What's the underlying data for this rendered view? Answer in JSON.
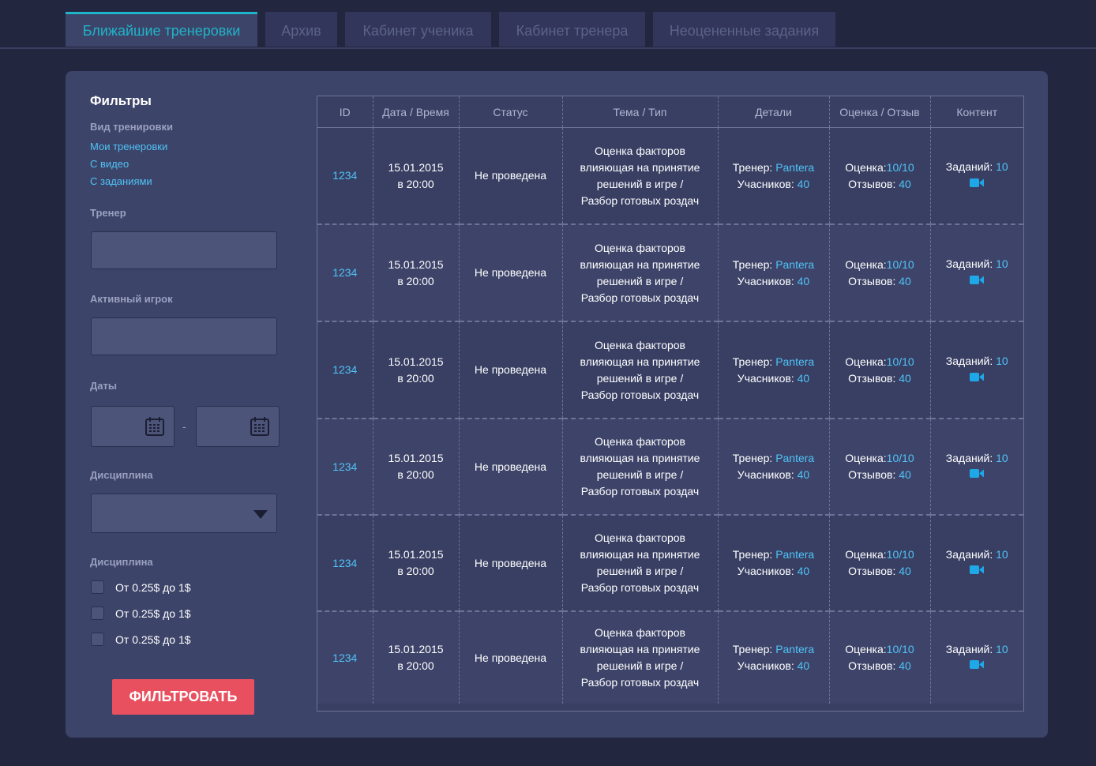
{
  "tabs": [
    {
      "label": "Ближайшие тренеровки",
      "active": true
    },
    {
      "label": "Архив",
      "active": false
    },
    {
      "label": "Кабинет ученика",
      "active": false
    },
    {
      "label": "Кабинет тренера",
      "active": false
    },
    {
      "label": "Неоцененные задания",
      "active": false
    }
  ],
  "filters": {
    "title": "Фильтры",
    "training_type_label": "Вид тренировки",
    "links": [
      "Мои тренеровки",
      "С видео",
      "С заданиями"
    ],
    "coach_label": "Тренер",
    "coach_value": "",
    "player_label": "Активный игрок",
    "player_value": "",
    "dates_label": "Даты",
    "date_from": "",
    "date_to": "",
    "date_separator": "-",
    "discipline_label": "Дисциплина",
    "discipline_selected": "",
    "discipline2_label": "Дисциплина",
    "checkboxes": [
      {
        "label": "От 0.25$ до 1$",
        "checked": false
      },
      {
        "label": "От 0.25$ до 1$",
        "checked": false
      },
      {
        "label": "От 0.25$ до 1$",
        "checked": false
      }
    ],
    "button_label": "ФИЛЬТРОВАТЬ"
  },
  "table": {
    "columns": [
      "ID",
      "Дата / Время",
      "Статус",
      "Тема / Тип",
      "Детали",
      "Оценка / Отзыв",
      "Контент"
    ],
    "rows": [
      {
        "id": "1234",
        "date": "15.01.2015",
        "time": "в 20:00",
        "status": "Не проведена",
        "topic": [
          "Оценка факторов",
          "влияющая на принятие",
          "решений в игре /",
          "Разбор готовых роздач"
        ],
        "coach_label": "Тренер:",
        "coach": "Pantera",
        "participants_label": "Учасников:",
        "participants": "40",
        "rating_label": "Оценка:",
        "rating": "10/10",
        "reviews_label": "Отзывов:",
        "reviews": "40",
        "tasks_label": "Заданий:",
        "tasks": "10",
        "icon": "video-camera-icon"
      },
      {
        "id": "1234",
        "date": "15.01.2015",
        "time": "в 20:00",
        "status": "Не проведена",
        "topic": [
          "Оценка факторов",
          "влияющая на принятие",
          "решений в игре /",
          "Разбор готовых роздач"
        ],
        "coach_label": "Тренер:",
        "coach": "Pantera",
        "participants_label": "Учасников:",
        "participants": "40",
        "rating_label": "Оценка:",
        "rating": "10/10",
        "reviews_label": "Отзывов:",
        "reviews": "40",
        "tasks_label": "Заданий:",
        "tasks": "10",
        "icon": "video-camera-icon"
      },
      {
        "id": "1234",
        "date": "15.01.2015",
        "time": "в 20:00",
        "status": "Не проведена",
        "topic": [
          "Оценка факторов",
          "влияющая на принятие",
          "решений в игре /",
          "Разбор готовых роздач"
        ],
        "coach_label": "Тренер:",
        "coach": "Pantera",
        "participants_label": "Учасников:",
        "participants": "40",
        "rating_label": "Оценка:",
        "rating": "10/10",
        "reviews_label": "Отзывов:",
        "reviews": "40",
        "tasks_label": "Заданий:",
        "tasks": "10",
        "icon": "video-camera-icon"
      },
      {
        "id": "1234",
        "date": "15.01.2015",
        "time": "в 20:00",
        "status": "Не проведена",
        "topic": [
          "Оценка факторов",
          "влияющая на принятие",
          "решений в игре /",
          "Разбор готовых роздач"
        ],
        "coach_label": "Тренер:",
        "coach": "Pantera",
        "participants_label": "Учасников:",
        "participants": "40",
        "rating_label": "Оценка:",
        "rating": "10/10",
        "reviews_label": "Отзывов:",
        "reviews": "40",
        "tasks_label": "Заданий:",
        "tasks": "10",
        "icon": "video-camera-icon"
      },
      {
        "id": "1234",
        "date": "15.01.2015",
        "time": "в 20:00",
        "status": "Не проведена",
        "topic": [
          "Оценка факторов",
          "влияющая на принятие",
          "решений в игре /",
          "Разбор готовых роздач"
        ],
        "coach_label": "Тренер:",
        "coach": "Pantera",
        "participants_label": "Учасников:",
        "participants": "40",
        "rating_label": "Оценка:",
        "rating": "10/10",
        "reviews_label": "Отзывов:",
        "reviews": "40",
        "tasks_label": "Заданий:",
        "tasks": "10",
        "icon": "video-camera-icon"
      },
      {
        "id": "1234",
        "date": "15.01.2015",
        "time": "в 20:00",
        "status": "Не проведена",
        "topic": [
          "Оценка факторов",
          "влияющая на принятие",
          "решений в игре /",
          "Разбор готовых роздач"
        ],
        "coach_label": "Тренер:",
        "coach": "Pantera",
        "participants_label": "Учасников:",
        "participants": "40",
        "rating_label": "Оценка:",
        "rating": "10/10",
        "reviews_label": "Отзывов:",
        "reviews": "40",
        "tasks_label": "Заданий:",
        "tasks": "10",
        "icon": "video-camera-icon"
      }
    ]
  },
  "colors": {
    "background": "#23263f",
    "panel": "#3d4469",
    "accent_tab": "#1fb4c8",
    "link": "#4fc3f7",
    "button": "#e8505f"
  }
}
